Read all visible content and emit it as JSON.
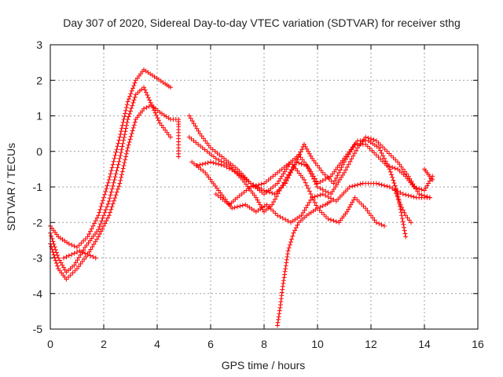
{
  "chart_data": {
    "type": "scatter",
    "title": "Day 307 of 2020, Sidereal Day-to-day VTEC variation (SDTVAR) for receiver sthg",
    "xlabel": "GPS time / hours",
    "ylabel": "SDTVAR / TECUs",
    "xlim": [
      0,
      16
    ],
    "ylim": [
      -5,
      3
    ],
    "xticks": [
      0,
      2,
      4,
      6,
      8,
      10,
      12,
      14,
      16
    ],
    "yticks": [
      -5,
      -4,
      -3,
      -2,
      -1,
      0,
      1,
      2,
      3
    ],
    "grid": true,
    "marker": "+",
    "color": "#ff0000",
    "series": [
      {
        "points": [
          [
            0,
            -2.3
          ],
          [
            0.3,
            -3.0
          ],
          [
            0.6,
            -3.4
          ],
          [
            0.9,
            -3.2
          ],
          [
            1.3,
            -2.7
          ],
          [
            1.8,
            -2.2
          ],
          [
            2.2,
            -1.4
          ],
          [
            2.6,
            -0.2
          ],
          [
            2.9,
            0.9
          ],
          [
            3.2,
            1.6
          ],
          [
            3.5,
            1.8
          ],
          [
            3.8,
            1.3
          ],
          [
            4.1,
            0.8
          ],
          [
            4.5,
            0.4
          ]
        ]
      },
      {
        "points": [
          [
            0,
            -2.1
          ],
          [
            0.3,
            -2.4
          ],
          [
            0.7,
            -2.6
          ],
          [
            1.0,
            -2.7
          ],
          [
            1.4,
            -2.4
          ],
          [
            1.8,
            -1.8
          ],
          [
            2.2,
            -0.8
          ],
          [
            2.6,
            0.4
          ],
          [
            2.9,
            1.4
          ],
          [
            3.2,
            2.0
          ],
          [
            3.5,
            2.3
          ],
          [
            3.9,
            2.1
          ],
          [
            4.3,
            1.9
          ],
          [
            4.5,
            1.8
          ]
        ]
      },
      {
        "points": [
          [
            0,
            -2.6
          ],
          [
            0.3,
            -3.3
          ],
          [
            0.6,
            -3.6
          ],
          [
            1.0,
            -3.3
          ],
          [
            1.4,
            -2.9
          ],
          [
            1.8,
            -2.4
          ],
          [
            2.2,
            -1.8
          ],
          [
            2.6,
            -0.9
          ],
          [
            2.9,
            0.1
          ],
          [
            3.2,
            0.9
          ],
          [
            3.5,
            1.2
          ],
          [
            3.8,
            1.3
          ],
          [
            4.1,
            1.1
          ],
          [
            4.5,
            0.9
          ]
        ]
      },
      {
        "points": [
          [
            0.5,
            -3.0
          ],
          [
            0.8,
            -2.9
          ],
          [
            1.1,
            -2.8
          ],
          [
            1.4,
            -2.9
          ],
          [
            1.7,
            -3.0
          ]
        ]
      },
      {
        "points": [
          [
            4.5,
            0.9
          ],
          [
            4.8,
            0.9
          ],
          [
            4.8,
            0.7
          ],
          [
            4.8,
            0.1
          ],
          [
            4.8,
            -0.15
          ]
        ]
      },
      {
        "points": [
          [
            5.2,
            1.0
          ],
          [
            5.6,
            0.5
          ],
          [
            6.0,
            0.1
          ],
          [
            6.5,
            -0.2
          ],
          [
            7.0,
            -0.5
          ],
          [
            7.5,
            -0.9
          ],
          [
            8.0,
            -1.2
          ],
          [
            8.5,
            -0.9
          ],
          [
            9.0,
            -0.3
          ],
          [
            9.3,
            -0.1
          ],
          [
            9.7,
            -0.5
          ],
          [
            10.0,
            -0.9
          ],
          [
            10.5,
            -0.7
          ],
          [
            11.0,
            -0.2
          ],
          [
            11.5,
            0.3
          ],
          [
            11.9,
            0.3
          ],
          [
            12.3,
            0.1
          ],
          [
            12.7,
            -0.5
          ],
          [
            13.0,
            -1.2
          ],
          [
            13.3,
            -2.4
          ]
        ]
      },
      {
        "points": [
          [
            5.2,
            0.4
          ],
          [
            5.7,
            0.1
          ],
          [
            6.2,
            -0.2
          ],
          [
            6.7,
            -0.4
          ],
          [
            7.2,
            -0.8
          ],
          [
            7.7,
            -1.3
          ],
          [
            8.0,
            -1.7
          ],
          [
            8.3,
            -1.5
          ],
          [
            8.8,
            -0.8
          ],
          [
            9.2,
            -0.3
          ],
          [
            9.6,
            -0.4
          ],
          [
            10.0,
            -1.0
          ],
          [
            10.5,
            -1.2
          ],
          [
            11.0,
            -0.6
          ],
          [
            11.5,
            0.1
          ],
          [
            11.8,
            0.4
          ],
          [
            12.2,
            0.3
          ],
          [
            12.6,
            0.0
          ],
          [
            13.0,
            -0.3
          ],
          [
            13.4,
            -0.7
          ],
          [
            13.8,
            -1.2
          ],
          [
            14.2,
            -1.3
          ]
        ]
      },
      {
        "points": [
          [
            5.3,
            -0.3
          ],
          [
            5.8,
            -0.6
          ],
          [
            6.3,
            -1.1
          ],
          [
            6.8,
            -1.6
          ],
          [
            7.3,
            -1.5
          ],
          [
            7.7,
            -1.7
          ],
          [
            8.1,
            -1.5
          ],
          [
            8.5,
            -1.8
          ],
          [
            9.0,
            -2.0
          ],
          [
            9.4,
            -1.8
          ],
          [
            9.8,
            -1.3
          ],
          [
            10.2,
            -1.2
          ],
          [
            10.7,
            -1.4
          ],
          [
            11.2,
            -1.0
          ],
          [
            11.7,
            -0.9
          ],
          [
            12.2,
            -0.9
          ],
          [
            12.7,
            -1.0
          ],
          [
            13.2,
            -1.2
          ],
          [
            13.7,
            -1.3
          ],
          [
            14.2,
            -1.3
          ]
        ]
      },
      {
        "points": [
          [
            5.5,
            -0.4
          ],
          [
            6.0,
            -0.3
          ],
          [
            6.5,
            -0.4
          ],
          [
            7.0,
            -0.6
          ],
          [
            7.5,
            -0.9
          ],
          [
            8.0,
            -1.1
          ],
          [
            8.4,
            -1.2
          ],
          [
            8.8,
            -0.9
          ],
          [
            9.2,
            -0.3
          ],
          [
            9.5,
            0.2
          ],
          [
            9.8,
            -0.2
          ],
          [
            10.2,
            -0.6
          ],
          [
            10.6,
            -0.9
          ],
          [
            11.0,
            -0.3
          ],
          [
            11.4,
            0.2
          ],
          [
            11.8,
            0.2
          ],
          [
            12.2,
            -0.1
          ],
          [
            12.6,
            -0.4
          ],
          [
            13.0,
            -0.5
          ],
          [
            13.3,
            -0.7
          ],
          [
            13.6,
            -1.0
          ],
          [
            14.0,
            -1.1
          ],
          [
            14.3,
            -0.7
          ]
        ]
      },
      {
        "points": [
          [
            6.2,
            -1.2
          ],
          [
            6.7,
            -1.5
          ],
          [
            7.0,
            -1.3
          ],
          [
            7.5,
            -1.0
          ],
          [
            8.0,
            -0.9
          ],
          [
            8.5,
            -0.6
          ],
          [
            9.0,
            -0.3
          ],
          [
            9.5,
            -0.8
          ],
          [
            10.0,
            -1.6
          ],
          [
            10.4,
            -1.9
          ],
          [
            10.8,
            -2.0
          ],
          [
            11.1,
            -1.7
          ],
          [
            11.4,
            -1.3
          ],
          [
            11.8,
            -1.6
          ],
          [
            12.2,
            -2.0
          ],
          [
            12.5,
            -2.1
          ]
        ]
      },
      {
        "points": [
          [
            8.5,
            -4.9
          ],
          [
            8.6,
            -4.4
          ],
          [
            8.7,
            -3.8
          ],
          [
            8.8,
            -3.3
          ],
          [
            8.9,
            -2.8
          ],
          [
            9.1,
            -2.3
          ],
          [
            9.3,
            -2.0
          ],
          [
            9.6,
            -1.8
          ],
          [
            10.0,
            -1.6
          ],
          [
            10.3,
            -1.5
          ],
          [
            10.5,
            -1.4
          ]
        ]
      },
      {
        "points": [
          [
            12.9,
            -1.1
          ],
          [
            13.1,
            -1.5
          ],
          [
            13.3,
            -1.8
          ],
          [
            13.5,
            -2.0
          ]
        ]
      },
      {
        "points": [
          [
            14.0,
            -0.5
          ],
          [
            14.1,
            -0.6
          ],
          [
            14.2,
            -0.7
          ],
          [
            14.3,
            -0.8
          ]
        ]
      }
    ]
  }
}
